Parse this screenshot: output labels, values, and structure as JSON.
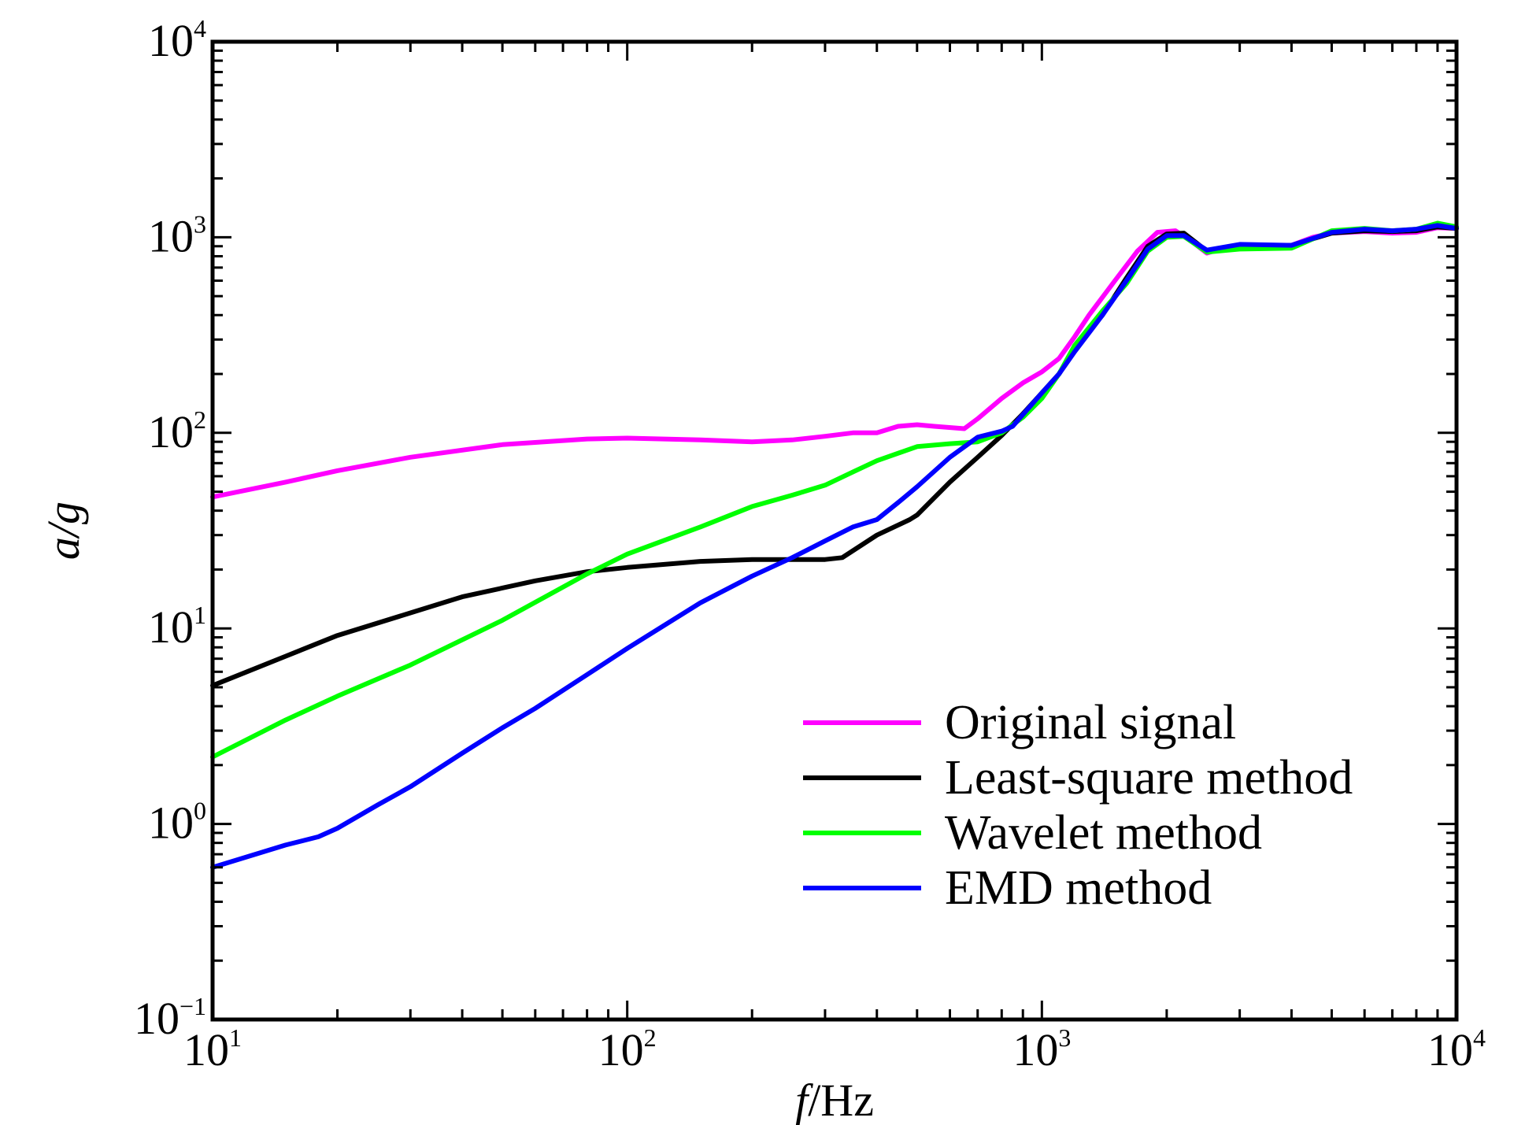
{
  "chart_data": {
    "type": "line",
    "xscale": "log",
    "yscale": "log",
    "xlim": [
      10,
      10000
    ],
    "ylim": [
      0.1,
      10000
    ],
    "xlabel": {
      "italic": "f",
      "rest": "/Hz"
    },
    "ylabel": {
      "italic": "a/g"
    },
    "x_ticks": [
      {
        "base": "10",
        "exp": "1",
        "value": 10
      },
      {
        "base": "10",
        "exp": "2",
        "value": 100
      },
      {
        "base": "10",
        "exp": "3",
        "value": 1000
      },
      {
        "base": "10",
        "exp": "4",
        "value": 10000
      }
    ],
    "y_ticks": [
      {
        "base": "10",
        "exp": "−1",
        "value": 0.1
      },
      {
        "base": "10",
        "exp": "0",
        "value": 1
      },
      {
        "base": "10",
        "exp": "1",
        "value": 10
      },
      {
        "base": "10",
        "exp": "2",
        "value": 100
      },
      {
        "base": "10",
        "exp": "3",
        "value": 1000
      },
      {
        "base": "10",
        "exp": "4",
        "value": 10000
      }
    ],
    "grid": false,
    "legend_position": "bottom-right",
    "series": [
      {
        "name": "Original signal",
        "color": "#ff00ff",
        "points": [
          [
            10,
            47
          ],
          [
            15,
            56
          ],
          [
            20,
            64
          ],
          [
            30,
            75
          ],
          [
            50,
            87
          ],
          [
            80,
            93
          ],
          [
            100,
            94
          ],
          [
            150,
            92
          ],
          [
            200,
            90
          ],
          [
            250,
            92
          ],
          [
            300,
            96
          ],
          [
            350,
            100
          ],
          [
            400,
            100
          ],
          [
            450,
            108
          ],
          [
            500,
            110
          ],
          [
            550,
            108
          ],
          [
            650,
            105
          ],
          [
            700,
            118
          ],
          [
            800,
            150
          ],
          [
            900,
            180
          ],
          [
            1000,
            205
          ],
          [
            1100,
            240
          ],
          [
            1200,
            310
          ],
          [
            1300,
            400
          ],
          [
            1500,
            600
          ],
          [
            1700,
            850
          ],
          [
            1900,
            1060
          ],
          [
            2100,
            1080
          ],
          [
            2300,
            950
          ],
          [
            2500,
            830
          ],
          [
            2800,
            890
          ],
          [
            3200,
            880
          ],
          [
            3600,
            900
          ],
          [
            4000,
            910
          ],
          [
            4500,
            1000
          ],
          [
            5000,
            1050
          ],
          [
            6000,
            1070
          ],
          [
            7000,
            1050
          ],
          [
            8000,
            1060
          ],
          [
            9000,
            1120
          ],
          [
            10000,
            1110
          ]
        ]
      },
      {
        "name": "Least-square method",
        "color": "#000000",
        "points": [
          [
            10,
            5.1
          ],
          [
            15,
            7.2
          ],
          [
            20,
            9.2
          ],
          [
            30,
            12
          ],
          [
            40,
            14.5
          ],
          [
            60,
            17.5
          ],
          [
            80,
            19.5
          ],
          [
            100,
            20.5
          ],
          [
            150,
            22
          ],
          [
            200,
            22.5
          ],
          [
            250,
            22.5
          ],
          [
            300,
            22.5
          ],
          [
            330,
            23
          ],
          [
            400,
            30
          ],
          [
            480,
            36
          ],
          [
            500,
            38
          ],
          [
            600,
            56
          ],
          [
            700,
            75
          ],
          [
            800,
            97
          ],
          [
            900,
            125
          ],
          [
            1000,
            160
          ],
          [
            1100,
            200
          ],
          [
            1200,
            270
          ],
          [
            1400,
            400
          ],
          [
            1600,
            620
          ],
          [
            1800,
            900
          ],
          [
            2000,
            1040
          ],
          [
            2200,
            1050
          ],
          [
            2500,
            850
          ],
          [
            3000,
            900
          ],
          [
            4000,
            910
          ],
          [
            5000,
            1050
          ],
          [
            6000,
            1080
          ],
          [
            7000,
            1070
          ],
          [
            8000,
            1080
          ],
          [
            9000,
            1130
          ],
          [
            10000,
            1110
          ]
        ]
      },
      {
        "name": "Wavelet method",
        "color": "#00ff00",
        "points": [
          [
            10,
            2.2
          ],
          [
            15,
            3.4
          ],
          [
            20,
            4.5
          ],
          [
            30,
            6.5
          ],
          [
            50,
            11
          ],
          [
            80,
            19
          ],
          [
            100,
            24
          ],
          [
            150,
            33
          ],
          [
            200,
            42
          ],
          [
            250,
            48
          ],
          [
            300,
            54
          ],
          [
            350,
            63
          ],
          [
            400,
            72
          ],
          [
            500,
            85
          ],
          [
            600,
            88
          ],
          [
            700,
            90
          ],
          [
            800,
            100
          ],
          [
            900,
            120
          ],
          [
            1000,
            150
          ],
          [
            1100,
            200
          ],
          [
            1200,
            280
          ],
          [
            1400,
            420
          ],
          [
            1600,
            580
          ],
          [
            1800,
            850
          ],
          [
            2000,
            1000
          ],
          [
            2200,
            1010
          ],
          [
            2500,
            840
          ],
          [
            3000,
            870
          ],
          [
            4000,
            880
          ],
          [
            5000,
            1080
          ],
          [
            6000,
            1110
          ],
          [
            7000,
            1080
          ],
          [
            8000,
            1100
          ],
          [
            9000,
            1180
          ],
          [
            10000,
            1130
          ]
        ]
      },
      {
        "name": "EMD method",
        "color": "#0000ff",
        "points": [
          [
            10,
            0.6
          ],
          [
            15,
            0.78
          ],
          [
            18,
            0.86
          ],
          [
            20,
            0.95
          ],
          [
            25,
            1.25
          ],
          [
            30,
            1.55
          ],
          [
            40,
            2.3
          ],
          [
            50,
            3.1
          ],
          [
            60,
            3.9
          ],
          [
            80,
            5.8
          ],
          [
            100,
            7.9
          ],
          [
            150,
            13.5
          ],
          [
            200,
            18.5
          ],
          [
            250,
            23
          ],
          [
            300,
            28
          ],
          [
            350,
            33
          ],
          [
            400,
            36
          ],
          [
            450,
            44
          ],
          [
            500,
            53
          ],
          [
            600,
            75
          ],
          [
            700,
            95
          ],
          [
            800,
            102
          ],
          [
            850,
            108
          ],
          [
            1000,
            160
          ],
          [
            1100,
            200
          ],
          [
            1200,
            260
          ],
          [
            1400,
            400
          ],
          [
            1600,
            600
          ],
          [
            1800,
            870
          ],
          [
            2000,
            1020
          ],
          [
            2200,
            1020
          ],
          [
            2500,
            860
          ],
          [
            3000,
            920
          ],
          [
            4000,
            910
          ],
          [
            5000,
            1060
          ],
          [
            6000,
            1100
          ],
          [
            7000,
            1080
          ],
          [
            8000,
            1100
          ],
          [
            9000,
            1150
          ],
          [
            10000,
            1110
          ]
        ]
      }
    ]
  }
}
